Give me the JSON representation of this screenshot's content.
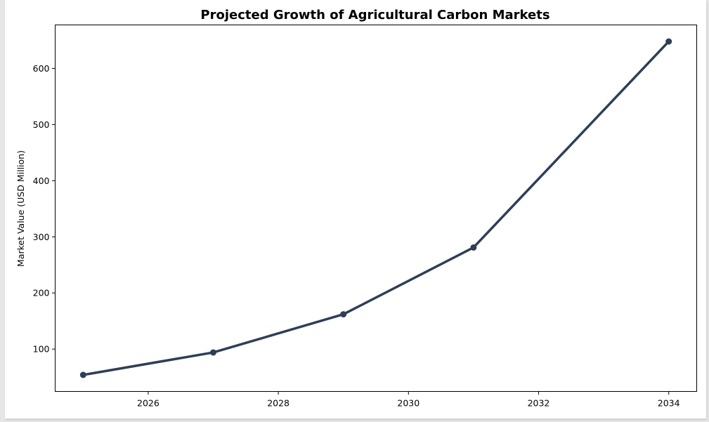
{
  "chart_data": {
    "type": "line",
    "title": "Projected Growth of Agricultural Carbon Markets",
    "xlabel": "",
    "ylabel": "Market Value (USD Million)",
    "xlim": [
      2024.57,
      2034.43
    ],
    "ylim": [
      24.5,
      677.5
    ],
    "xticks": [
      2026,
      2028,
      2030,
      2032,
      2034
    ],
    "yticks": [
      100,
      200,
      300,
      400,
      500,
      600
    ],
    "grid": false,
    "legend": "none",
    "series": [
      {
        "color": "#2e3f55",
        "x": [
          2025,
          2027,
          2029,
          2031,
          2034
        ],
        "y": [
          54,
          94,
          162,
          281,
          648
        ]
      }
    ]
  }
}
